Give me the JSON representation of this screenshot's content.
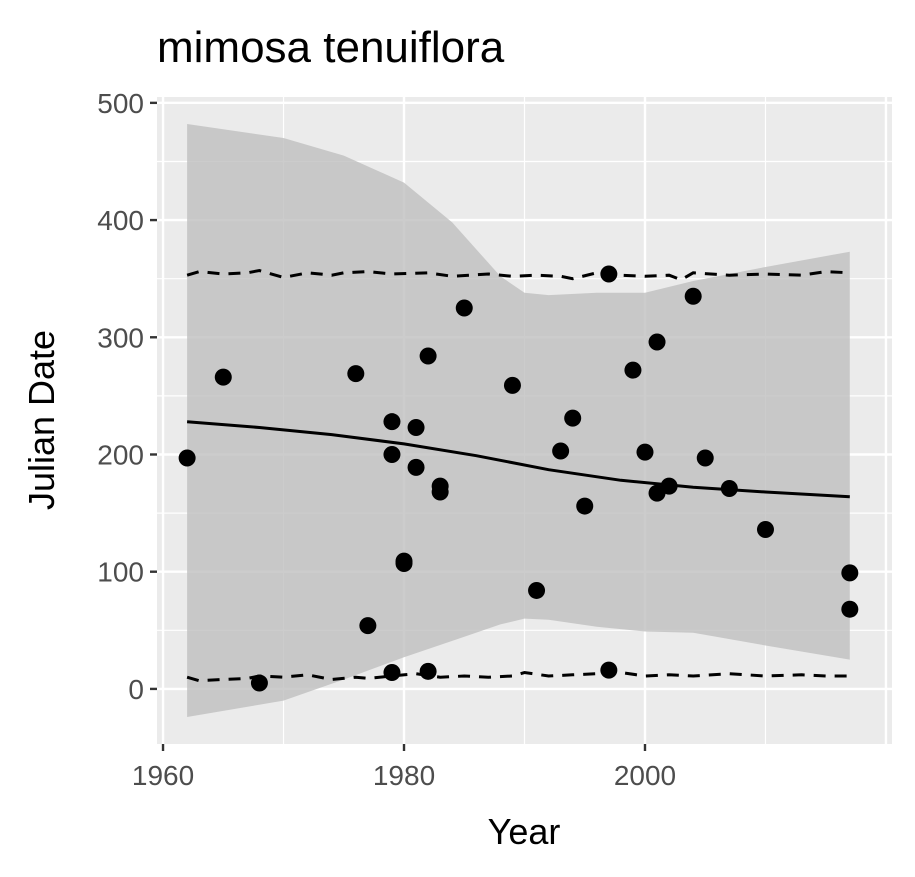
{
  "chart_data": {
    "type": "scatter",
    "title": "mimosa tenuiflora",
    "xlabel": "Year",
    "ylabel": "Julian Date",
    "xlim": [
      1959.5,
      2020.5
    ],
    "ylim": [
      -47,
      505
    ],
    "xticks": [
      1960,
      1980,
      2000
    ],
    "xtick_labels": [
      "1960",
      "1980",
      "2000"
    ],
    "yticks": [
      0,
      100,
      200,
      300,
      400,
      500
    ],
    "ytick_labels": [
      "0",
      "100",
      "200",
      "300",
      "400",
      "500"
    ],
    "grid": true,
    "background": "#ebebeb",
    "points": [
      {
        "x": 1962,
        "y": 197
      },
      {
        "x": 1965,
        "y": 266
      },
      {
        "x": 1968,
        "y": 5
      },
      {
        "x": 1976,
        "y": 269
      },
      {
        "x": 1977,
        "y": 54
      },
      {
        "x": 1979,
        "y": 228
      },
      {
        "x": 1979,
        "y": 200
      },
      {
        "x": 1979,
        "y": 14
      },
      {
        "x": 1980,
        "y": 109
      },
      {
        "x": 1980,
        "y": 107
      },
      {
        "x": 1981,
        "y": 223
      },
      {
        "x": 1981,
        "y": 189
      },
      {
        "x": 1982,
        "y": 284
      },
      {
        "x": 1982,
        "y": 15
      },
      {
        "x": 1983,
        "y": 173
      },
      {
        "x": 1983,
        "y": 168
      },
      {
        "x": 1985,
        "y": 325
      },
      {
        "x": 1989,
        "y": 259
      },
      {
        "x": 1991,
        "y": 84
      },
      {
        "x": 1993,
        "y": 203
      },
      {
        "x": 1994,
        "y": 231
      },
      {
        "x": 1995,
        "y": 156
      },
      {
        "x": 1997,
        "y": 354
      },
      {
        "x": 1997,
        "y": 16
      },
      {
        "x": 1999,
        "y": 272
      },
      {
        "x": 2000,
        "y": 202
      },
      {
        "x": 2001,
        "y": 296
      },
      {
        "x": 2001,
        "y": 167
      },
      {
        "x": 2002,
        "y": 173
      },
      {
        "x": 2004,
        "y": 335
      },
      {
        "x": 2005,
        "y": 197
      },
      {
        "x": 2007,
        "y": 171
      },
      {
        "x": 2010,
        "y": 136
      },
      {
        "x": 2017,
        "y": 99
      },
      {
        "x": 2017,
        "y": 68
      }
    ],
    "fit_line": {
      "x": [
        1962,
        1968,
        1974,
        1980,
        1986,
        1992,
        1998,
        2004,
        2010,
        2017
      ],
      "y": [
        228,
        223,
        217,
        209,
        199,
        187,
        178,
        172,
        168,
        164
      ]
    },
    "confidence_band": {
      "x": [
        1962,
        1970,
        1975,
        1980,
        1984,
        1988,
        1990,
        1992,
        1996,
        2000,
        2004,
        2010,
        2017
      ],
      "upper": [
        482,
        470,
        455,
        432,
        398,
        352,
        338,
        336,
        338,
        338,
        348,
        360,
        373
      ],
      "lower": [
        -24,
        -10,
        8,
        27,
        41,
        55,
        60,
        59,
        53,
        49,
        48,
        37,
        25
      ]
    },
    "upper_dashed": {
      "x": [
        1962,
        1963,
        1965,
        1967,
        1968,
        1970,
        1972,
        1974,
        1975,
        1977,
        1979,
        1982,
        1984,
        1987,
        1989,
        1991,
        1993,
        1994,
        1996,
        1998,
        2000,
        2002,
        2003,
        2004,
        2007,
        2010,
        2013,
        2015,
        2017
      ],
      "y": [
        353,
        356,
        354,
        355,
        357,
        351,
        355,
        353,
        355,
        356,
        354,
        355,
        352,
        354,
        352,
        353,
        352,
        350,
        355,
        353,
        352,
        353,
        349,
        355,
        353,
        354,
        353,
        356,
        355
      ]
    },
    "lower_dashed": {
      "x": [
        1962,
        1963,
        1965,
        1967,
        1968,
        1970,
        1972,
        1974,
        1976,
        1977,
        1979,
        1981,
        1983,
        1985,
        1987,
        1989,
        1990,
        1992,
        1994,
        1996,
        1998,
        2000,
        2002,
        2004,
        2007,
        2010,
        2013,
        2015,
        2017
      ],
      "y": [
        10,
        7,
        8,
        9,
        11,
        10,
        12,
        8,
        10,
        9,
        11,
        13,
        10,
        11,
        10,
        11,
        14,
        11,
        12,
        13,
        14,
        11,
        12,
        11,
        13,
        11,
        12,
        11,
        11
      ]
    }
  }
}
